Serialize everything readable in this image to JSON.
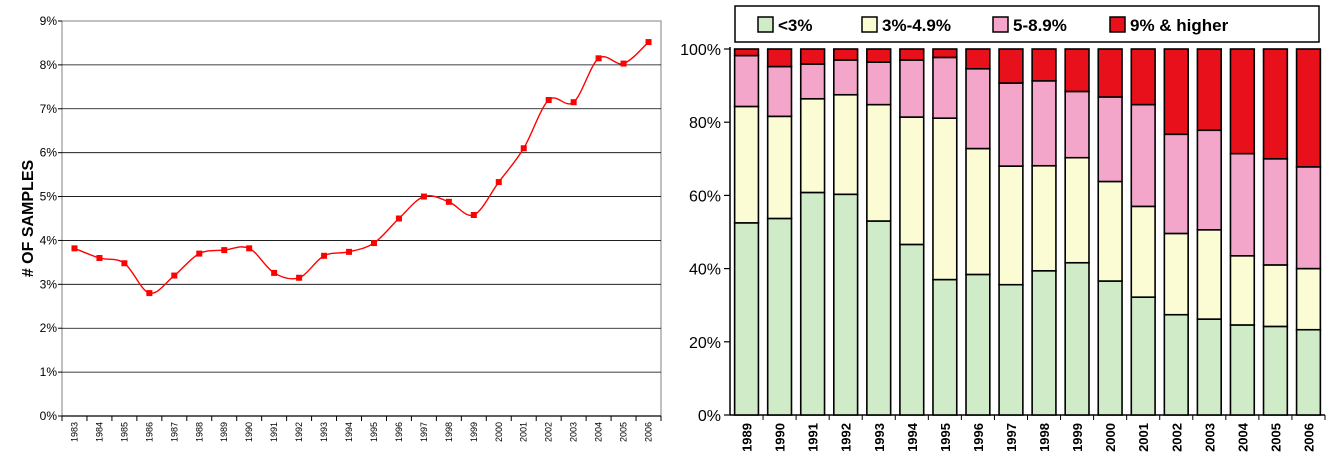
{
  "chart_data": [
    {
      "type": "line",
      "ylabel": "# OF SAMPLES",
      "ylim": [
        0,
        9
      ],
      "y_ticks": [
        "0%",
        "1%",
        "2%",
        "3%",
        "4%",
        "5%",
        "6%",
        "7%",
        "8%",
        "9%"
      ],
      "grid": "horizontal",
      "line_color": "#ff0000",
      "x": [
        "1983",
        "1984",
        "1985",
        "1986",
        "1987",
        "1988",
        "1989",
        "1990",
        "1991",
        "1992",
        "1993",
        "1994",
        "1995",
        "1996",
        "1997",
        "1998",
        "1999",
        "2000",
        "2001",
        "2002",
        "2003",
        "2004",
        "2005",
        "2006"
      ],
      "values": [
        3.82,
        3.6,
        3.48,
        2.8,
        3.2,
        3.7,
        3.78,
        3.82,
        3.26,
        3.15,
        3.65,
        3.74,
        3.94,
        4.5,
        5.0,
        4.88,
        4.58,
        5.33,
        6.1,
        7.2,
        7.15,
        8.15,
        8.03,
        8.52
      ]
    },
    {
      "type": "bar",
      "stacked": true,
      "ylim": [
        0,
        100
      ],
      "y_ticks": [
        "0%",
        "20%",
        "40%",
        "60%",
        "80%",
        "100%"
      ],
      "legend_position": "top",
      "categories": [
        "1989",
        "1990",
        "1991",
        "1992",
        "1993",
        "1994",
        "1995",
        "1996",
        "1997",
        "1998",
        "1999",
        "2000",
        "2001",
        "2002",
        "2003",
        "2004",
        "2005",
        "2006"
      ],
      "series": [
        {
          "name": "<3%",
          "color": "#d0ebc8",
          "values": [
            52.5,
            53.7,
            60.8,
            60.3,
            53,
            46.6,
            37,
            38.4,
            35.6,
            39.4,
            41.6,
            36.6,
            32.2,
            27.4,
            26.2,
            24.6,
            24.2,
            23.3
          ]
        },
        {
          "name": "3%-4.9%",
          "color": "#fcfcd4",
          "values": [
            31.8,
            27.9,
            25.6,
            27.2,
            31.8,
            34.8,
            44.1,
            34.4,
            32.4,
            28.7,
            28.7,
            27.2,
            24.8,
            22.2,
            24.4,
            18.9,
            16.8,
            16.7
          ]
        },
        {
          "name": "5-8.9%",
          "color": "#f4a6ca",
          "values": [
            13.9,
            13.6,
            9.5,
            9.5,
            11.6,
            15.6,
            16.6,
            21.8,
            22.7,
            23.2,
            18.1,
            23.1,
            27.8,
            27.1,
            27.2,
            27.9,
            29.0,
            27.8
          ]
        },
        {
          "name": "9% & higher",
          "color": "#e8101a",
          "values": [
            1.8,
            4.8,
            4.1,
            3.0,
            3.6,
            3.0,
            2.3,
            5.4,
            9.3,
            8.7,
            11.6,
            13.1,
            15.2,
            23.3,
            22.2,
            28.6,
            30.0,
            32.2
          ]
        }
      ]
    }
  ]
}
